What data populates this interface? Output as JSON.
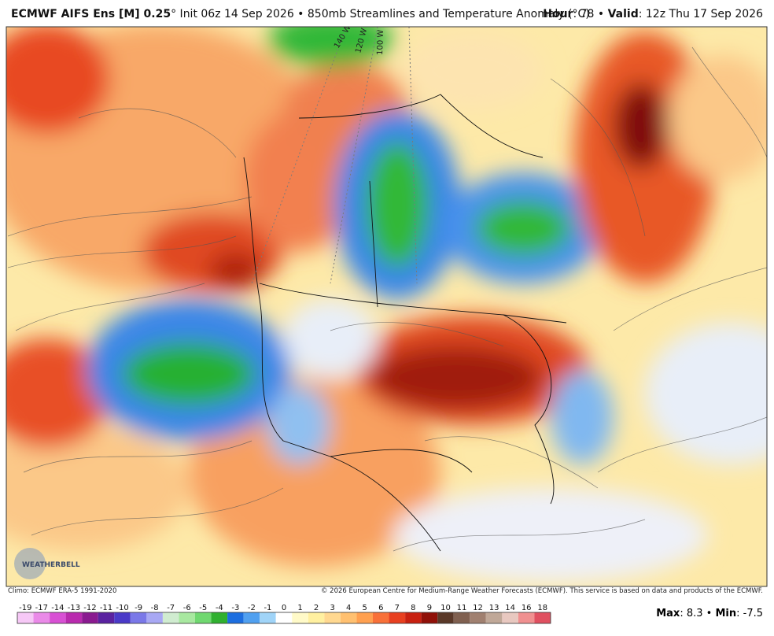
{
  "header": {
    "title_bold": "ECMWF AIFS Ens [M] 0.25",
    "title_rest": "° Init 06z 14 Sep 2026 • 850mb Streamlines and Temperature Anomaly (°C)",
    "hour_label": "Hour",
    "hour_value": ": 78 • ",
    "valid_label": "Valid",
    "valid_value": ": 12z Thu 17 Sep 2026"
  },
  "map": {
    "meridian_labels": [
      "140 W",
      "120 W",
      "100 W"
    ],
    "logo": "WEATHERBELL"
  },
  "footer": {
    "climo": "Climo: ECMWF ERA-5 1991-2020",
    "copyright": "© 2026 European Centre for Medium-Range Weather Forecasts (ECMWF). This service is based on data and products of the ECMWF.",
    "max_label": "Max",
    "max_value": ": 8.3 • ",
    "min_label": "Min",
    "min_value": ": -7.5"
  },
  "colorbar": {
    "labels": [
      "-19",
      "-17",
      "-14",
      "-13",
      "-12",
      "-11",
      "-10",
      "-9",
      "-8",
      "-7",
      "-6",
      "-5",
      "-4",
      "-3",
      "-2",
      "-1",
      "0",
      "1",
      "2",
      "3",
      "4",
      "5",
      "6",
      "7",
      "8",
      "9",
      "10",
      "11",
      "12",
      "13",
      "14",
      "16",
      "18"
    ],
    "colors": [
      "#f6c8f6",
      "#ea8ae8",
      "#d850d4",
      "#b92aae",
      "#8a1a90",
      "#5a22a0",
      "#4a3ac8",
      "#7a78e8",
      "#a8a8f4",
      "#d0ecd0",
      "#a8e8a0",
      "#70d870",
      "#30b030",
      "#1c6ee0",
      "#50a0f0",
      "#a0d4f8",
      "#ffffff",
      "#fffac8",
      "#fff0a0",
      "#ffd890",
      "#ffc070",
      "#ffa050",
      "#f87038",
      "#e84020",
      "#c82010",
      "#901008",
      "#5a3828",
      "#806050",
      "#a08070",
      "#c0a898",
      "#e8c8c0",
      "#f09090",
      "#e05060"
    ]
  }
}
